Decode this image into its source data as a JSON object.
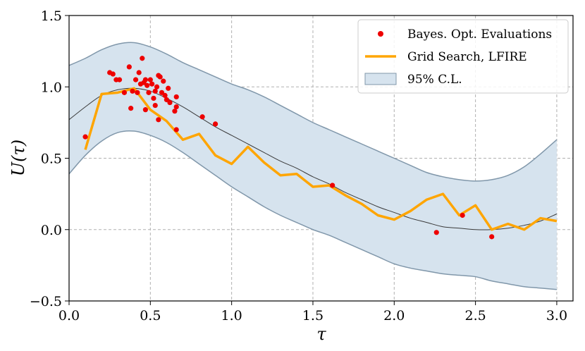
{
  "chart_data": {
    "type": "line",
    "title": "",
    "xlabel": "τ",
    "ylabel": "U(τ)",
    "xlim": [
      0.0,
      3.1
    ],
    "ylim": [
      -0.5,
      1.5
    ],
    "xticks": [
      0.0,
      0.5,
      1.0,
      1.5,
      2.0,
      2.5,
      3.0
    ],
    "xtick_labels": [
      "0.0",
      "0.5",
      "1.0",
      "1.5",
      "2.0",
      "2.5",
      "3.0"
    ],
    "yticks": [
      -0.5,
      0.0,
      0.5,
      1.0,
      1.5
    ],
    "ytick_labels": [
      "−0.5",
      "0.0",
      "0.5",
      "1.0",
      "1.5"
    ],
    "grid": true,
    "legend_position": "top-right",
    "colors": {
      "scatter": "#ee0000",
      "grid_search": "#ffa500",
      "band_fill": "#d6e3ee",
      "band_edge": "#8097aa",
      "mean": "#3a3a3a"
    },
    "series": [
      {
        "name": "Bayes. Opt. Evaluations",
        "kind": "scatter",
        "points": [
          [
            0.1,
            0.65
          ],
          [
            0.25,
            1.1
          ],
          [
            0.27,
            1.09
          ],
          [
            0.29,
            1.05
          ],
          [
            0.31,
            1.05
          ],
          [
            0.34,
            0.96
          ],
          [
            0.37,
            1.14
          ],
          [
            0.38,
            0.85
          ],
          [
            0.39,
            0.97
          ],
          [
            0.41,
            1.05
          ],
          [
            0.42,
            0.96
          ],
          [
            0.43,
            1.1
          ],
          [
            0.44,
            1.02
          ],
          [
            0.45,
            1.2
          ],
          [
            0.46,
            1.03
          ],
          [
            0.47,
            0.84
          ],
          [
            0.47,
            1.05
          ],
          [
            0.48,
            1.01
          ],
          [
            0.49,
            0.96
          ],
          [
            0.5,
            1.05
          ],
          [
            0.51,
            1.02
          ],
          [
            0.52,
            0.92
          ],
          [
            0.53,
            0.87
          ],
          [
            0.53,
            0.97
          ],
          [
            0.54,
            1.0
          ],
          [
            0.55,
            1.08
          ],
          [
            0.55,
            0.77
          ],
          [
            0.56,
            1.07
          ],
          [
            0.57,
            0.96
          ],
          [
            0.58,
            1.04
          ],
          [
            0.59,
            0.94
          ],
          [
            0.6,
            0.91
          ],
          [
            0.61,
            0.99
          ],
          [
            0.62,
            0.89
          ],
          [
            0.65,
            0.83
          ],
          [
            0.66,
            0.86
          ],
          [
            0.66,
            0.93
          ],
          [
            0.66,
            0.7
          ],
          [
            0.82,
            0.79
          ],
          [
            0.9,
            0.74
          ],
          [
            1.62,
            0.31
          ],
          [
            2.26,
            -0.02
          ],
          [
            2.42,
            0.1
          ],
          [
            2.6,
            -0.05
          ]
        ]
      },
      {
        "name": "Grid Search, LFIRE",
        "kind": "line",
        "x": [
          0.1,
          0.2,
          0.3,
          0.4,
          0.5,
          0.6,
          0.7,
          0.8,
          0.9,
          1.0,
          1.1,
          1.2,
          1.3,
          1.4,
          1.5,
          1.6,
          1.7,
          1.8,
          1.9,
          2.0,
          2.1,
          2.2,
          2.3,
          2.4,
          2.5,
          2.6,
          2.7,
          2.8,
          2.9,
          3.0
        ],
        "y": [
          0.56,
          0.95,
          0.96,
          0.99,
          0.84,
          0.76,
          0.63,
          0.67,
          0.52,
          0.46,
          0.58,
          0.47,
          0.38,
          0.39,
          0.3,
          0.31,
          0.24,
          0.18,
          0.1,
          0.07,
          0.13,
          0.21,
          0.25,
          0.1,
          0.17,
          0.0,
          0.04,
          0.0,
          0.08,
          0.06
        ]
      },
      {
        "name": "95% C.L.",
        "kind": "band",
        "x": [
          0.0,
          0.1,
          0.2,
          0.3,
          0.4,
          0.5,
          0.6,
          0.7,
          0.8,
          0.9,
          1.0,
          1.1,
          1.2,
          1.3,
          1.4,
          1.5,
          1.6,
          1.7,
          1.8,
          1.9,
          2.0,
          2.1,
          2.2,
          2.3,
          2.4,
          2.5,
          2.6,
          2.7,
          2.8,
          2.9,
          3.0
        ],
        "lower": [
          0.39,
          0.52,
          0.62,
          0.68,
          0.69,
          0.66,
          0.61,
          0.54,
          0.46,
          0.38,
          0.3,
          0.23,
          0.16,
          0.1,
          0.05,
          0.0,
          -0.04,
          -0.09,
          -0.14,
          -0.19,
          -0.24,
          -0.27,
          -0.29,
          -0.31,
          -0.32,
          -0.33,
          -0.36,
          -0.38,
          -0.4,
          -0.41,
          -0.42
        ],
        "upper": [
          1.15,
          1.2,
          1.26,
          1.3,
          1.31,
          1.28,
          1.23,
          1.17,
          1.12,
          1.07,
          1.02,
          0.98,
          0.93,
          0.87,
          0.81,
          0.75,
          0.7,
          0.65,
          0.6,
          0.55,
          0.5,
          0.45,
          0.4,
          0.37,
          0.35,
          0.34,
          0.35,
          0.38,
          0.44,
          0.53,
          0.63
        ]
      },
      {
        "name": "mean",
        "kind": "mean-line",
        "x": [
          0.0,
          0.1,
          0.2,
          0.3,
          0.4,
          0.5,
          0.6,
          0.7,
          0.8,
          0.9,
          1.0,
          1.1,
          1.2,
          1.3,
          1.4,
          1.5,
          1.6,
          1.7,
          1.8,
          1.9,
          2.0,
          2.1,
          2.2,
          2.3,
          2.4,
          2.5,
          2.6,
          2.7,
          2.8,
          2.9,
          3.0
        ],
        "y": [
          0.77,
          0.86,
          0.94,
          0.98,
          0.99,
          0.97,
          0.92,
          0.86,
          0.79,
          0.72,
          0.66,
          0.6,
          0.54,
          0.48,
          0.43,
          0.37,
          0.32,
          0.26,
          0.21,
          0.16,
          0.12,
          0.08,
          0.05,
          0.02,
          0.01,
          0.0,
          0.0,
          0.01,
          0.03,
          0.06,
          0.11
        ]
      }
    ],
    "legend": [
      "Bayes. Opt. Evaluations",
      "Grid Search, LFIRE",
      "95% C.L."
    ]
  }
}
